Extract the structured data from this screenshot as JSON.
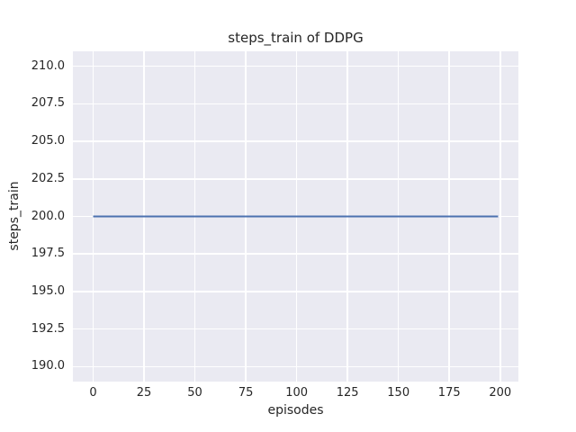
{
  "chart_data": {
    "type": "line",
    "title": "steps_train of DDPG",
    "xlabel": "episodes",
    "ylabel": "steps_train",
    "xlim": [
      -9.95,
      208.95
    ],
    "ylim": [
      189,
      211
    ],
    "grid": true,
    "legend_position": "none",
    "plot_background": "#eaeaf2",
    "grid_color": "#ffffff",
    "text_color": "#262626",
    "x_ticks": [
      {
        "v": 0,
        "label": "0"
      },
      {
        "v": 25,
        "label": "25"
      },
      {
        "v": 50,
        "label": "50"
      },
      {
        "v": 75,
        "label": "75"
      },
      {
        "v": 100,
        "label": "100"
      },
      {
        "v": 125,
        "label": "125"
      },
      {
        "v": 150,
        "label": "150"
      },
      {
        "v": 175,
        "label": "175"
      },
      {
        "v": 200,
        "label": "200"
      }
    ],
    "y_ticks": [
      {
        "v": 190.0,
        "label": "190.0"
      },
      {
        "v": 192.5,
        "label": "192.5"
      },
      {
        "v": 195.0,
        "label": "195.0"
      },
      {
        "v": 197.5,
        "label": "197.5"
      },
      {
        "v": 200.0,
        "label": "200.0"
      },
      {
        "v": 202.5,
        "label": "202.5"
      },
      {
        "v": 205.0,
        "label": "205.0"
      },
      {
        "v": 207.5,
        "label": "207.5"
      },
      {
        "v": 210.0,
        "label": "210.0"
      }
    ],
    "series": [
      {
        "name": "steps_train",
        "color": "#4c72b0",
        "line_width": 2,
        "description": "constant value of 200 steps for every training episode from 0 to 199",
        "points": [
          [
            0,
            200
          ],
          [
            199,
            200
          ]
        ]
      }
    ]
  }
}
